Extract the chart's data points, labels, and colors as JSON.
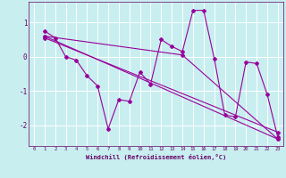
{
  "xlabel": "Windchill (Refroidissement éolien,°C)",
  "background_color": "#c8eef0",
  "line_color": "#990099",
  "grid_color": "#ffffff",
  "xlim": [
    -0.5,
    23.5
  ],
  "ylim": [
    -2.6,
    1.6
  ],
  "yticks": [
    -2,
    -1,
    0,
    1
  ],
  "xticks": [
    0,
    1,
    2,
    3,
    4,
    5,
    6,
    7,
    8,
    9,
    10,
    11,
    12,
    13,
    14,
    15,
    16,
    17,
    18,
    19,
    20,
    21,
    22,
    23
  ],
  "series1": {
    "x": [
      1,
      2,
      3,
      4,
      5,
      6,
      7,
      8,
      9,
      10,
      11,
      12,
      13,
      14,
      15,
      16,
      17,
      18,
      19,
      20,
      21,
      22,
      23
    ],
    "y": [
      0.75,
      0.55,
      0.0,
      -0.1,
      -0.55,
      -0.85,
      -2.1,
      -1.25,
      -1.3,
      -0.45,
      -0.8,
      0.5,
      0.3,
      0.15,
      1.35,
      1.35,
      -0.05,
      -1.7,
      -1.75,
      -0.15,
      -0.2,
      -1.1,
      -2.35
    ]
  },
  "series2": {
    "x": [
      1,
      23
    ],
    "y": [
      0.55,
      -2.2
    ]
  },
  "series3": {
    "x": [
      1,
      23
    ],
    "y": [
      0.6,
      -2.4
    ]
  },
  "series4": {
    "x": [
      1,
      14,
      23
    ],
    "y": [
      0.6,
      0.05,
      -2.4
    ]
  }
}
